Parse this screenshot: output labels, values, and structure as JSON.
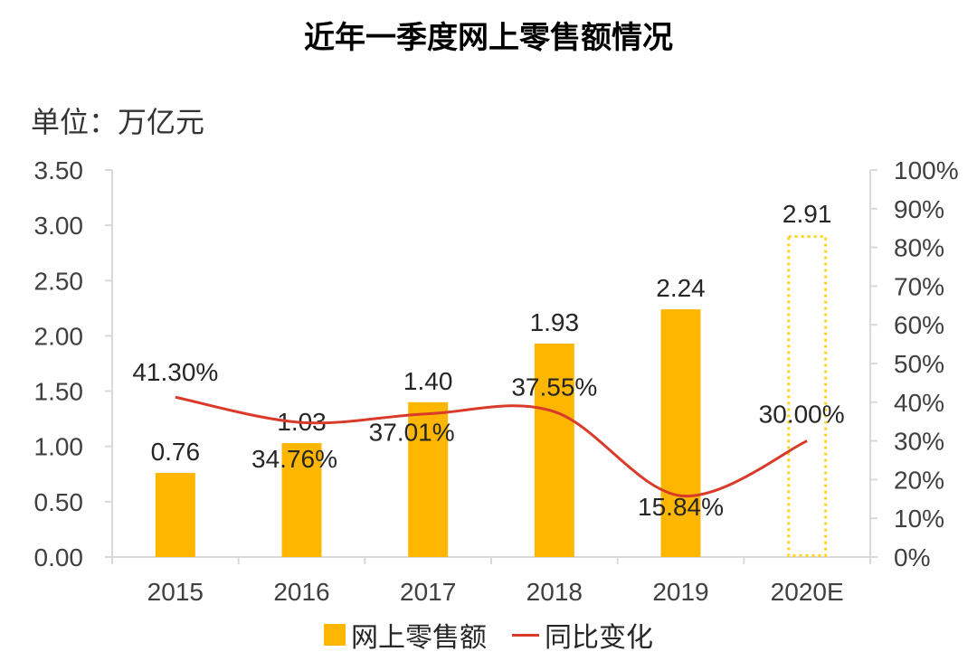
{
  "chart_data": {
    "type": "bar",
    "title": "近年一季度网上零售额情况",
    "unit_label": "单位：万亿元",
    "categories": [
      "2015",
      "2016",
      "2017",
      "2018",
      "2019",
      "2020E"
    ],
    "series": [
      {
        "name": "网上零售额",
        "type": "bar",
        "axis": "left",
        "values": [
          0.76,
          1.03,
          1.4,
          1.93,
          2.24,
          2.91
        ],
        "labels": [
          "0.76",
          "1.03",
          "1.40",
          "1.93",
          "2.24",
          "2.91"
        ],
        "estimated": [
          false,
          false,
          false,
          false,
          false,
          true
        ]
      },
      {
        "name": "同比变化",
        "type": "line",
        "axis": "right",
        "values": [
          41.3,
          34.76,
          37.01,
          37.55,
          15.84,
          30.0
        ],
        "labels": [
          "41.30%",
          "34.76%",
          "37.01%",
          "37.55%",
          "15.84%",
          "30.00%"
        ]
      }
    ],
    "left_axis": {
      "ylim": [
        0,
        3.5
      ],
      "ticks": [
        "0.00",
        "0.50",
        "1.00",
        "1.50",
        "2.00",
        "2.50",
        "3.00",
        "3.50"
      ]
    },
    "right_axis": {
      "ylim": [
        0,
        100
      ],
      "ticks": [
        "0%",
        "10%",
        "20%",
        "30%",
        "40%",
        "50%",
        "60%",
        "70%",
        "80%",
        "90%",
        "100%"
      ]
    },
    "legend_position": "bottom",
    "colors": {
      "bar": "#FFB600",
      "line": "#D93A2A",
      "axis": "#D9D9D9"
    }
  }
}
